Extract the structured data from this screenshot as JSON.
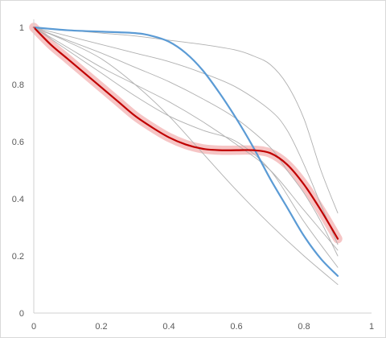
{
  "chart_data": {
    "type": "line",
    "title": "",
    "xlabel": "",
    "ylabel": "",
    "xlim": [
      0,
      1
    ],
    "ylim": [
      0,
      1
    ],
    "x_ticks": [
      "0",
      "0.2",
      "0.4",
      "0.6",
      "0.8",
      "1"
    ],
    "y_ticks": [
      "0",
      "0.2",
      "0.4",
      "0.6",
      "0.8",
      "1"
    ],
    "grid": false,
    "legend": "none",
    "series": [
      {
        "id": "gray-1",
        "color": "#b0b0b0",
        "style": "thin",
        "x": [
          0,
          0.1,
          0.2,
          0.3,
          0.4,
          0.5,
          0.6,
          0.65,
          0.7,
          0.75,
          0.8,
          0.85,
          0.9
        ],
        "y": [
          1,
          0.99,
          0.98,
          0.97,
          0.955,
          0.94,
          0.92,
          0.9,
          0.87,
          0.8,
          0.68,
          0.5,
          0.35
        ]
      },
      {
        "id": "gray-2",
        "color": "#b0b0b0",
        "style": "thin",
        "x": [
          0,
          0.1,
          0.2,
          0.3,
          0.4,
          0.5,
          0.6,
          0.7,
          0.75,
          0.8,
          0.85,
          0.9
        ],
        "y": [
          1,
          0.97,
          0.94,
          0.91,
          0.88,
          0.84,
          0.79,
          0.71,
          0.64,
          0.52,
          0.38,
          0.24
        ]
      },
      {
        "id": "gray-3",
        "color": "#b0b0b0",
        "style": "thin",
        "x": [
          0,
          0.1,
          0.2,
          0.3,
          0.4,
          0.5,
          0.6,
          0.7,
          0.75,
          0.8,
          0.85,
          0.9
        ],
        "y": [
          1,
          0.955,
          0.91,
          0.86,
          0.81,
          0.75,
          0.68,
          0.58,
          0.5,
          0.42,
          0.32,
          0.2
        ]
      },
      {
        "id": "gray-4",
        "color": "#b0b0b0",
        "style": "thin",
        "x": [
          0,
          0.1,
          0.2,
          0.3,
          0.4,
          0.5,
          0.6,
          0.7,
          0.8,
          0.9
        ],
        "y": [
          1,
          0.93,
          0.86,
          0.8,
          0.74,
          0.67,
          0.59,
          0.5,
          0.36,
          0.22
        ]
      },
      {
        "id": "gray-5",
        "color": "#b0b0b0",
        "style": "thin",
        "x": [
          0,
          0.1,
          0.2,
          0.3,
          0.4,
          0.5,
          0.6,
          0.7,
          0.8,
          0.9
        ],
        "y": [
          1,
          0.92,
          0.84,
          0.76,
          0.69,
          0.64,
          0.6,
          0.5,
          0.32,
          0.16
        ]
      },
      {
        "id": "gray-6",
        "color": "#b0b0b0",
        "style": "thin",
        "x": [
          0,
          0.1,
          0.2,
          0.3,
          0.4,
          0.5,
          0.6,
          0.7,
          0.8,
          0.9
        ],
        "y": [
          1,
          0.95,
          0.89,
          0.8,
          0.69,
          0.56,
          0.43,
          0.31,
          0.2,
          0.1
        ]
      },
      {
        "id": "blue",
        "color": "#5b9bd5",
        "style": "thick",
        "x": [
          0,
          0.1,
          0.2,
          0.3,
          0.35,
          0.4,
          0.45,
          0.5,
          0.55,
          0.6,
          0.65,
          0.7,
          0.75,
          0.8,
          0.85,
          0.9
        ],
        "y": [
          1,
          0.99,
          0.985,
          0.98,
          0.97,
          0.95,
          0.91,
          0.85,
          0.77,
          0.68,
          0.58,
          0.47,
          0.37,
          0.27,
          0.19,
          0.13
        ]
      },
      {
        "id": "red",
        "color": "#c00000",
        "style": "thick",
        "band_color": "#f4b6b6",
        "band_halfwidth": 0.012,
        "x": [
          0,
          0.05,
          0.1,
          0.15,
          0.2,
          0.25,
          0.3,
          0.35,
          0.4,
          0.45,
          0.5,
          0.55,
          0.6,
          0.65,
          0.7,
          0.75,
          0.8,
          0.85,
          0.9
        ],
        "y": [
          1,
          0.94,
          0.89,
          0.84,
          0.79,
          0.74,
          0.69,
          0.65,
          0.615,
          0.59,
          0.575,
          0.57,
          0.57,
          0.57,
          0.56,
          0.52,
          0.45,
          0.36,
          0.26
        ]
      }
    ]
  }
}
